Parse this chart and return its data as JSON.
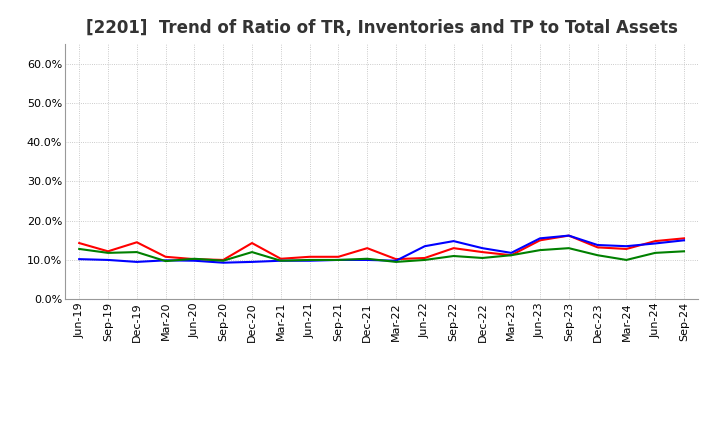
{
  "title": "[2201]  Trend of Ratio of TR, Inventories and TP to Total Assets",
  "x_labels": [
    "Jun-19",
    "Sep-19",
    "Dec-19",
    "Mar-20",
    "Jun-20",
    "Sep-20",
    "Dec-20",
    "Mar-21",
    "Jun-21",
    "Sep-21",
    "Dec-21",
    "Mar-22",
    "Jun-22",
    "Sep-22",
    "Dec-22",
    "Mar-23",
    "Jun-23",
    "Sep-23",
    "Dec-23",
    "Mar-24",
    "Jun-24",
    "Sep-24"
  ],
  "trade_receivables": [
    0.143,
    0.122,
    0.145,
    0.108,
    0.102,
    0.1,
    0.143,
    0.103,
    0.108,
    0.108,
    0.13,
    0.102,
    0.105,
    0.13,
    0.12,
    0.112,
    0.15,
    0.162,
    0.132,
    0.128,
    0.148,
    0.155
  ],
  "inventories": [
    0.102,
    0.1,
    0.095,
    0.099,
    0.098,
    0.093,
    0.095,
    0.098,
    0.098,
    0.1,
    0.1,
    0.098,
    0.135,
    0.148,
    0.13,
    0.118,
    0.155,
    0.162,
    0.138,
    0.135,
    0.142,
    0.15
  ],
  "trade_payables": [
    0.128,
    0.118,
    0.12,
    0.097,
    0.103,
    0.098,
    0.12,
    0.098,
    0.1,
    0.1,
    0.103,
    0.095,
    0.1,
    0.11,
    0.105,
    0.112,
    0.125,
    0.13,
    0.112,
    0.1,
    0.118,
    0.122
  ],
  "tr_color": "#ff0000",
  "inv_color": "#0000ff",
  "tp_color": "#008000",
  "ylim": [
    0.0,
    0.65
  ],
  "yticks": [
    0.0,
    0.1,
    0.2,
    0.3,
    0.4,
    0.5,
    0.6
  ],
  "ytick_labels": [
    "0.0%",
    "10.0%",
    "20.0%",
    "30.0%",
    "40.0%",
    "50.0%",
    "60.0%"
  ],
  "background_color": "#ffffff",
  "grid_color": "#bbbbbb",
  "line_width": 1.5,
  "title_fontsize": 12,
  "tick_fontsize": 8,
  "legend_fontsize": 9
}
